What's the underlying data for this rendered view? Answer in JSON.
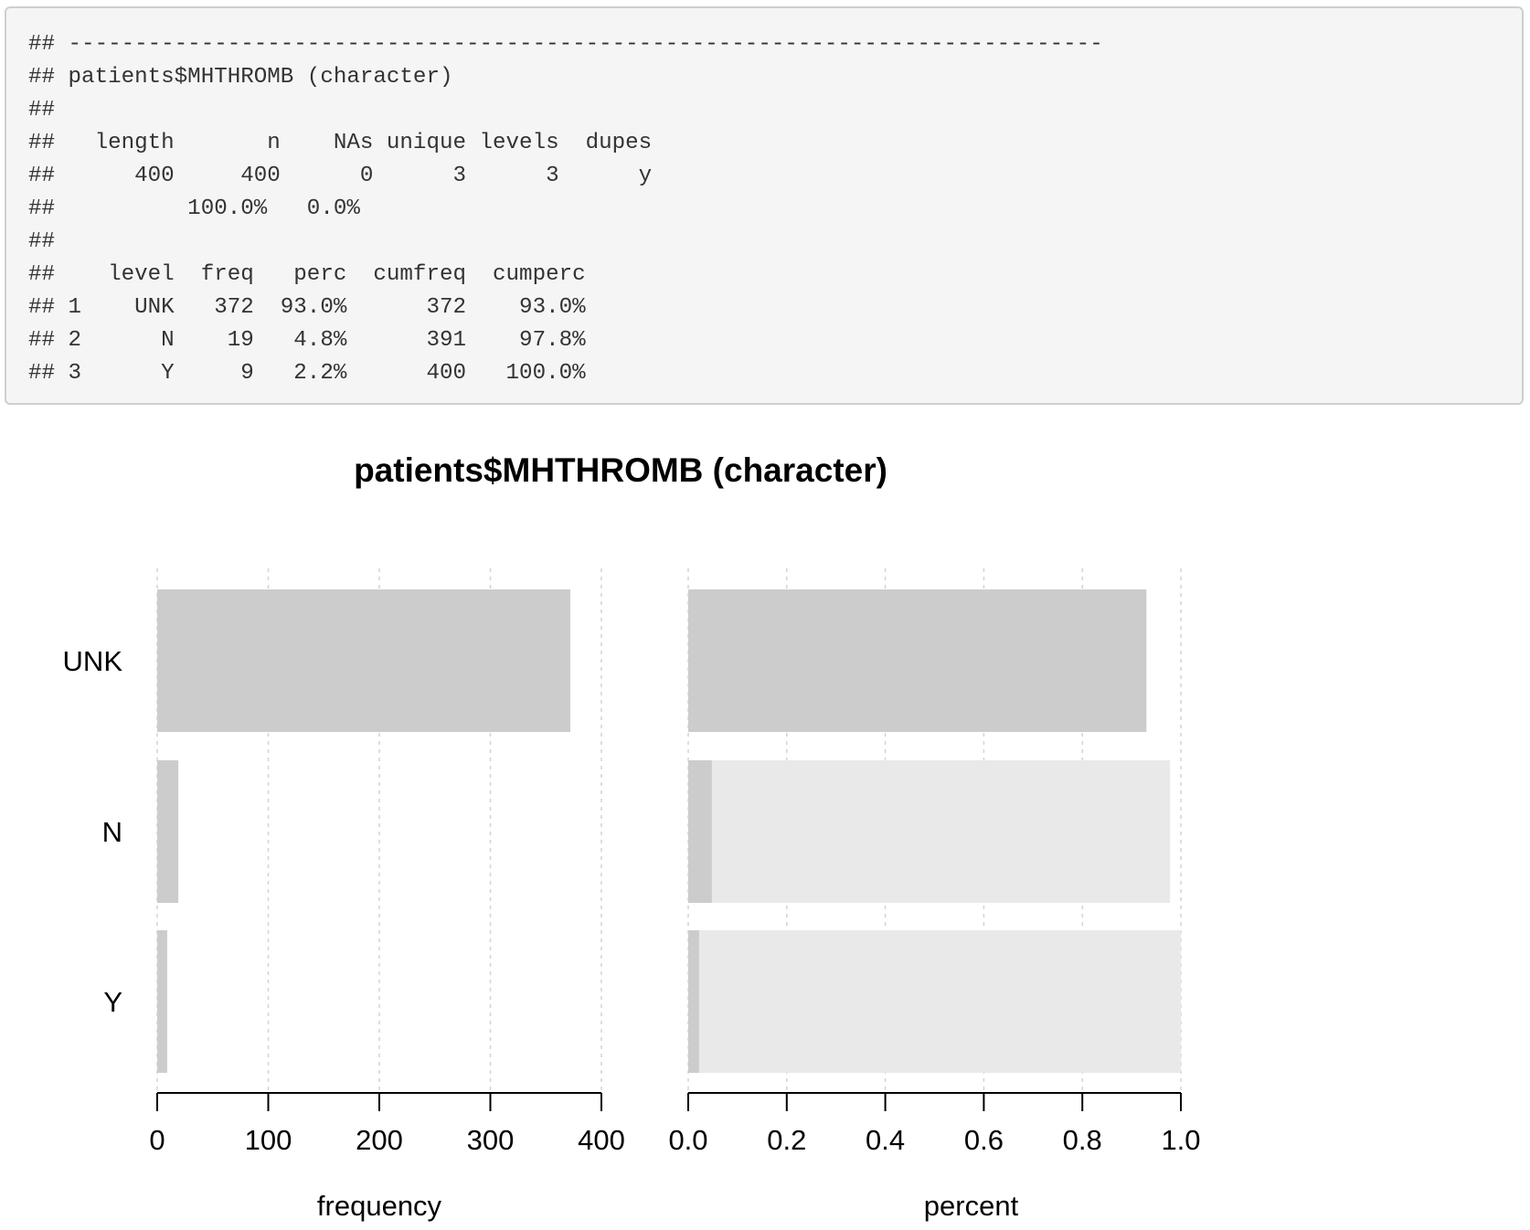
{
  "console": {
    "lines": [
      "## ------------------------------------------------------------------------------",
      "## patients$MHTHROMB (character)",
      "##",
      "##   length       n    NAs unique levels  dupes",
      "##      400     400      0      3      3      y",
      "##          100.0%   0.0%",
      "##",
      "##    level  freq   perc  cumfreq  cumperc",
      "## 1    UNK   372  93.0%      372    93.0%",
      "## 2      N    19   4.8%      391    97.8%",
      "## 3      Y     9   2.2%      400   100.0%"
    ]
  },
  "chart_data": {
    "type": "bar",
    "title": "patients$MHTHROMB (character)",
    "categories": [
      "UNK",
      "N",
      "Y"
    ],
    "panels": [
      {
        "name": "frequency",
        "xlabel": "frequency",
        "xlim": [
          0,
          400
        ],
        "ticks": [
          0,
          100,
          200,
          300,
          400
        ],
        "tick_labels": [
          "0",
          "100",
          "200",
          "300",
          "400"
        ],
        "series": [
          {
            "name": "freq",
            "values": [
              372,
              19,
              9
            ],
            "color": "#cccccc"
          }
        ]
      },
      {
        "name": "percent",
        "xlabel": "percent",
        "xlim": [
          0,
          1
        ],
        "ticks": [
          0,
          0.2,
          0.4,
          0.6,
          0.8,
          1.0
        ],
        "tick_labels": [
          "0.0",
          "0.2",
          "0.4",
          "0.6",
          "0.8",
          "1.0"
        ],
        "series": [
          {
            "name": "cumperc",
            "values": [
              0.93,
              0.978,
              1.0
            ],
            "color": "#e9e9e9"
          },
          {
            "name": "perc",
            "values": [
              0.93,
              0.048,
              0.022
            ],
            "color": "#cccccc"
          }
        ]
      }
    ],
    "grid": true,
    "gridline_color": "#d3d3d3"
  }
}
